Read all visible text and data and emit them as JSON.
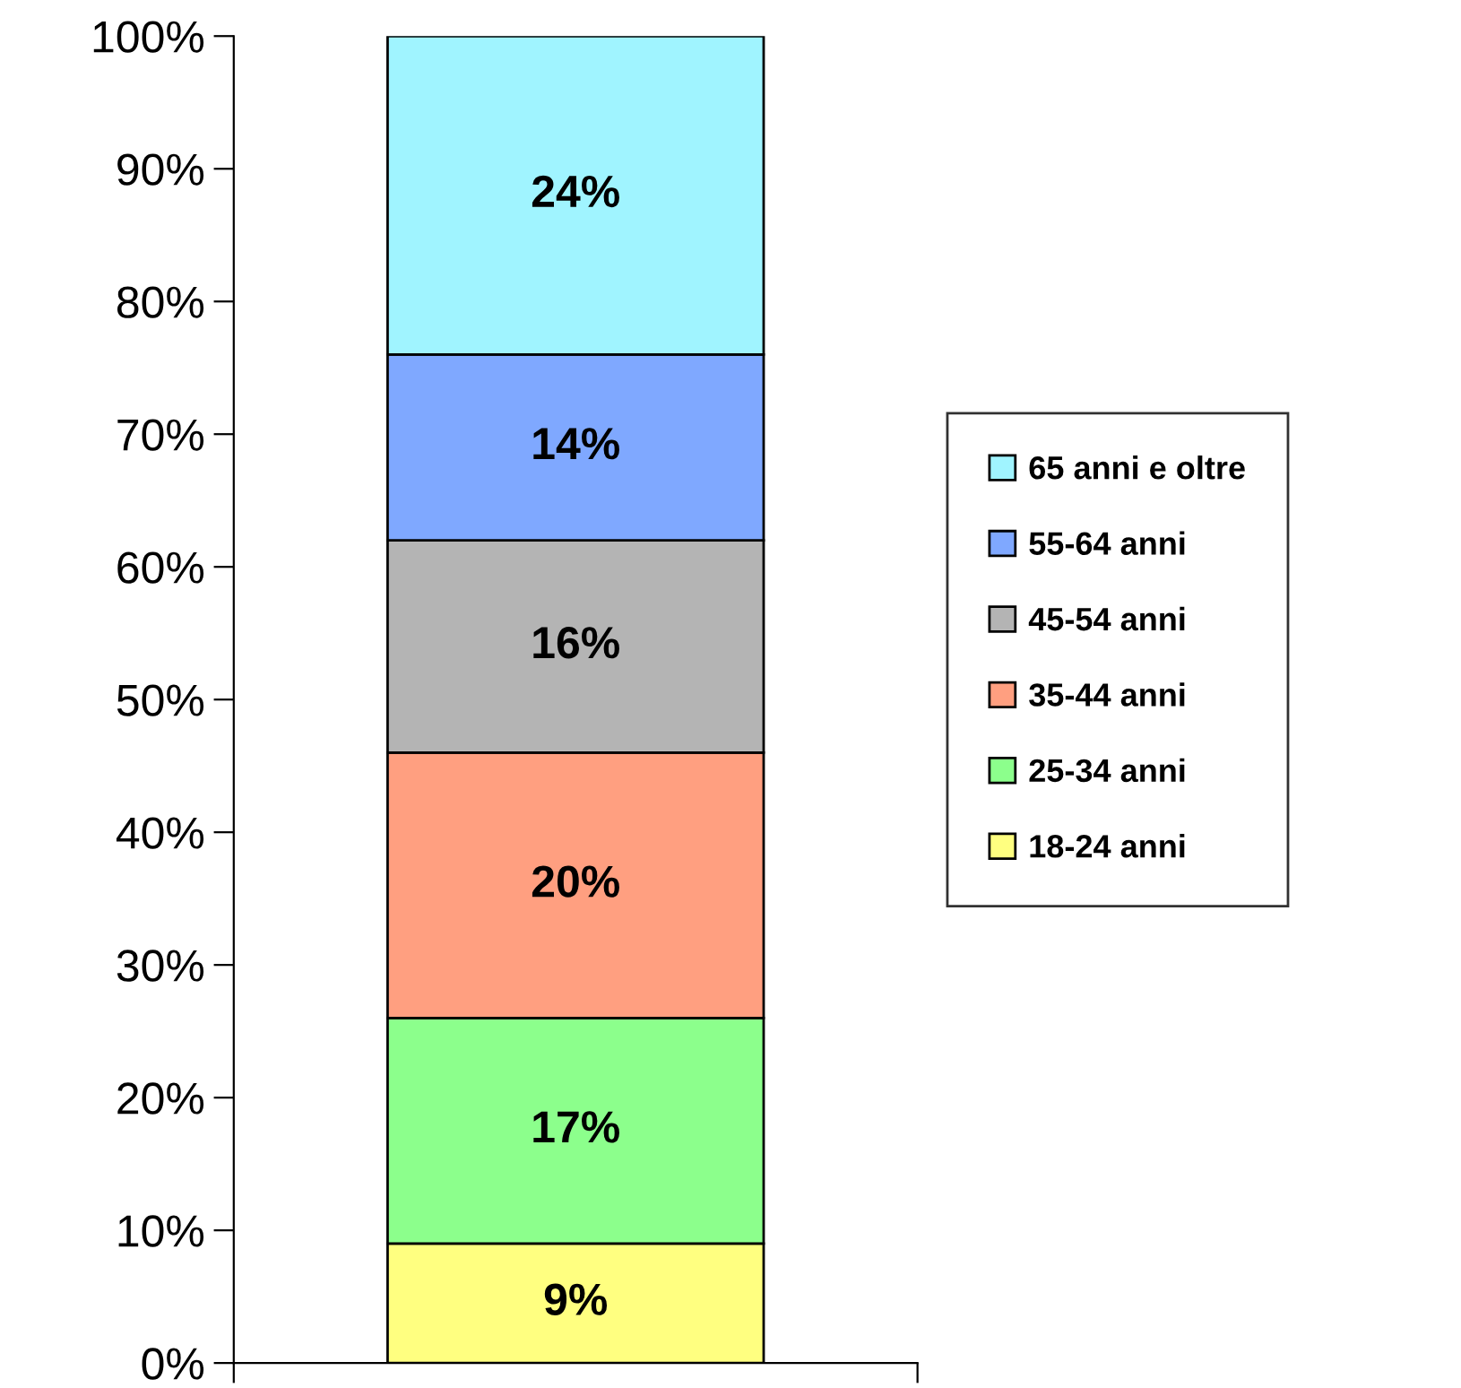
{
  "chart_data": {
    "type": "bar",
    "stacked": true,
    "categories": [
      null
    ],
    "series": [
      {
        "name": "18-24 anni",
        "color": "#ffff80",
        "values": [
          9
        ],
        "value_labels": [
          "9%"
        ]
      },
      {
        "name": "25-34 anni",
        "color": "#8cff8c",
        "values": [
          17
        ],
        "value_labels": [
          "17%"
        ]
      },
      {
        "name": "35-44 anni",
        "color": "#ff9f80",
        "values": [
          20
        ],
        "value_labels": [
          "20%"
        ]
      },
      {
        "name": "45-54 anni",
        "color": "#b4b4b4",
        "values": [
          16
        ],
        "value_labels": [
          "16%"
        ]
      },
      {
        "name": "55-64 anni",
        "color": "#7fa8ff",
        "values": [
          14
        ],
        "value_labels": [
          "14%"
        ]
      },
      {
        "name": "65 anni e oltre",
        "color": "#a0f4ff",
        "values": [
          24
        ],
        "value_labels": [
          "24%"
        ]
      }
    ],
    "ylim": [
      0,
      100
    ],
    "yticks": [
      {
        "value": 0,
        "label": "0%"
      },
      {
        "value": 10,
        "label": "10%"
      },
      {
        "value": 20,
        "label": "20%"
      },
      {
        "value": 30,
        "label": "30%"
      },
      {
        "value": 40,
        "label": "40%"
      },
      {
        "value": 50,
        "label": "50%"
      },
      {
        "value": 60,
        "label": "60%"
      },
      {
        "value": 70,
        "label": "70%"
      },
      {
        "value": 80,
        "label": "80%"
      },
      {
        "value": 90,
        "label": "90%"
      },
      {
        "value": 100,
        "label": "100%"
      }
    ],
    "grid": false,
    "legend": "right"
  }
}
